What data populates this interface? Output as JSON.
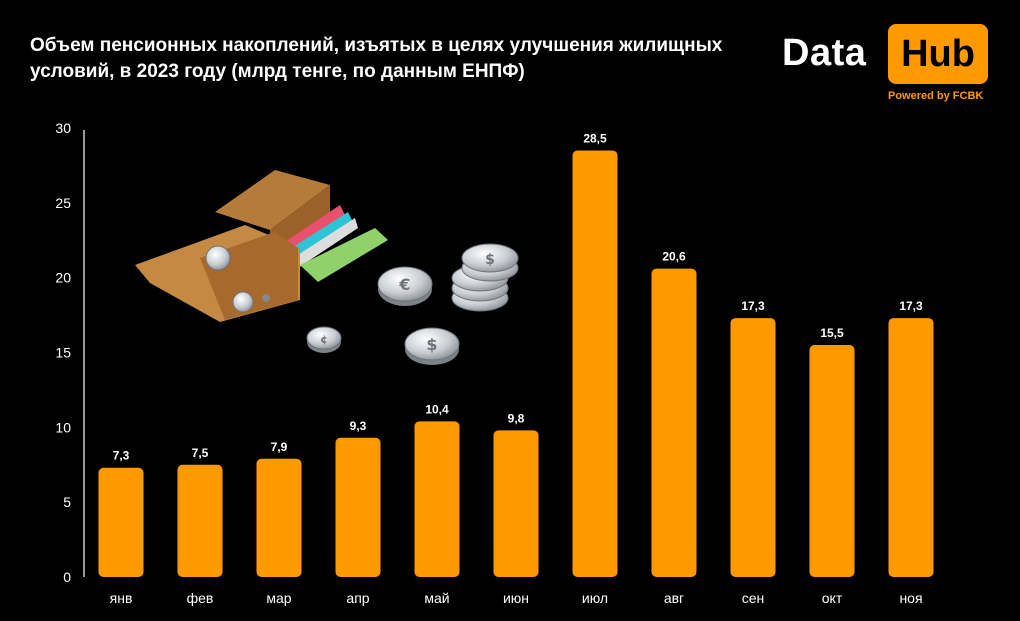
{
  "title": "Объем пенсионных накоплений, изъятых в целях улучшения жилищных условий, в 2023  году (млрд тенге, по данным ЕНПФ)",
  "logo": {
    "word1": "Data",
    "word2": "Hub",
    "tagline": "Powered by FCBK",
    "accent_color": "#ff9900"
  },
  "illustration": {
    "icons": [
      "wallet-icon",
      "euro-coin-icon",
      "dollar-coin-icon",
      "coin-stack-icon",
      "coin-icon"
    ],
    "coin_symbols": [
      "€",
      "$",
      "$",
      "¢",
      "¢"
    ]
  },
  "chart_data": {
    "type": "bar",
    "title": "Объем пенсионных накоплений, изъятых в целях улучшения жилищных условий, в 2023  году (млрд тенге, по данным ЕНПФ)",
    "categories": [
      "янв",
      "фев",
      "мар",
      "апр",
      "май",
      "июн",
      "июл",
      "авг",
      "сен",
      "окт",
      "ноя"
    ],
    "values": [
      7.3,
      7.5,
      7.9,
      9.3,
      10.4,
      9.8,
      28.5,
      20.6,
      17.3,
      15.5,
      17.3
    ],
    "value_labels": [
      "7,3",
      "7,5",
      "7,9",
      "9,3",
      "10,4",
      "9,8",
      "28,5",
      "20,6",
      "17,3",
      "15,5",
      "17,3"
    ],
    "y_ticks": [
      0,
      5,
      10,
      15,
      20,
      25,
      30
    ],
    "ylim": [
      0,
      30
    ],
    "xlabel": "",
    "ylabel": "",
    "grid": false,
    "legend": "none",
    "bar_color": "#ff9900",
    "background": "#000000"
  }
}
